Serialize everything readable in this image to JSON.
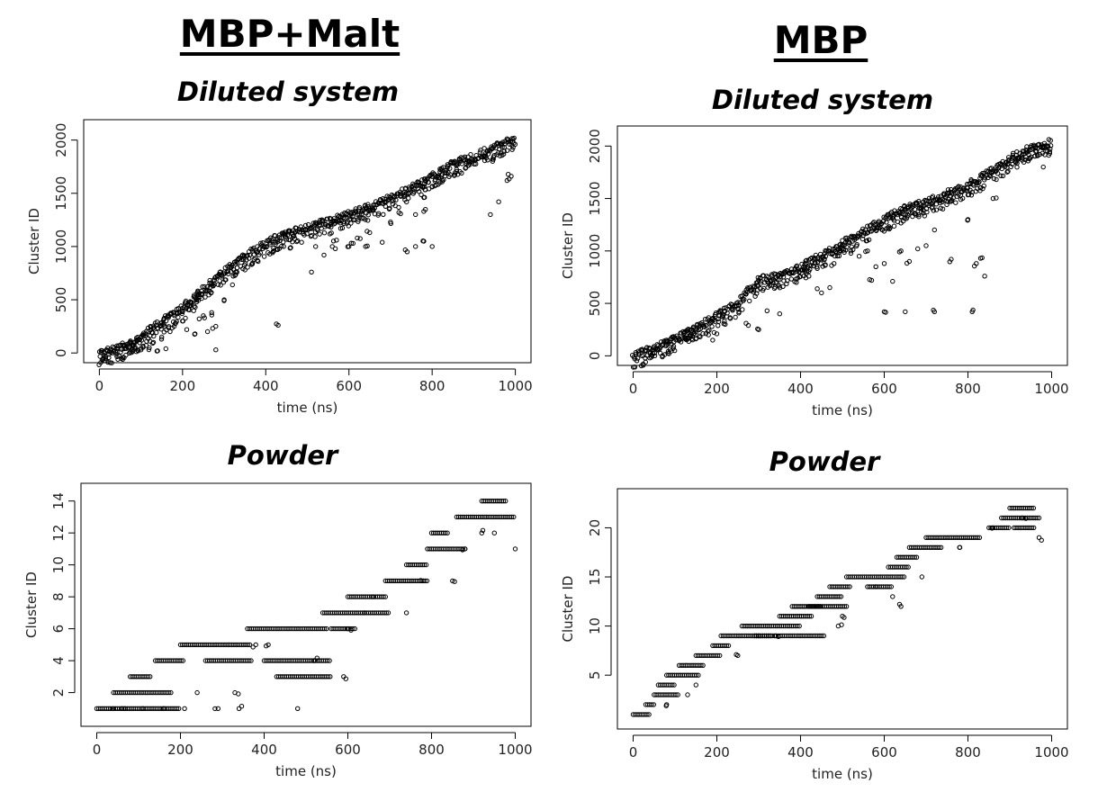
{
  "headers": {
    "left": "MBP+Malt",
    "right": "MBP"
  },
  "chart_data": [
    {
      "id": "mbp-malt-diluted",
      "type": "scatter",
      "title": "Diluted system",
      "xlabel": "time (ns)",
      "ylabel": "Cluster ID",
      "xlim": [
        0,
        1000
      ],
      "ylim": [
        0,
        2100
      ],
      "x_ticks": [
        0,
        200,
        400,
        600,
        800,
        1000
      ],
      "y_ticks": [
        0,
        500,
        1000,
        1500,
        2000
      ],
      "series": [
        {
          "kind": "trend",
          "points": [
            [
              0,
              0
            ],
            [
              50,
              40
            ],
            [
              100,
              150
            ],
            [
              150,
              290
            ],
            [
              200,
              430
            ],
            [
              250,
              590
            ],
            [
              300,
              760
            ],
            [
              350,
              900
            ],
            [
              400,
              1030
            ],
            [
              450,
              1110
            ],
            [
              500,
              1170
            ],
            [
              550,
              1230
            ],
            [
              600,
              1300
            ],
            [
              650,
              1370
            ],
            [
              700,
              1450
            ],
            [
              750,
              1550
            ],
            [
              800,
              1650
            ],
            [
              850,
              1770
            ],
            [
              900,
              1840
            ],
            [
              950,
              1930
            ],
            [
              1000,
              2010
            ]
          ]
        },
        {
          "kind": "outliers",
          "points": [
            [
              60,
              40
            ],
            [
              80,
              60
            ],
            [
              100,
              30
            ],
            [
              120,
              50
            ],
            [
              140,
              20
            ],
            [
              160,
              40
            ],
            [
              130,
              100
            ],
            [
              90,
              110
            ],
            [
              150,
              150
            ],
            [
              170,
              200
            ],
            [
              180,
              250
            ],
            [
              200,
              300
            ],
            [
              210,
              220
            ],
            [
              230,
              180
            ],
            [
              240,
              320
            ],
            [
              250,
              350
            ],
            [
              260,
              200
            ],
            [
              270,
              380
            ],
            [
              280,
              30
            ],
            [
              280,
              250
            ],
            [
              300,
              500
            ],
            [
              320,
              640
            ],
            [
              330,
              760
            ],
            [
              350,
              780
            ],
            [
              380,
              870
            ],
            [
              410,
              930
            ],
            [
              420,
              960
            ],
            [
              430,
              260
            ],
            [
              460,
              990
            ],
            [
              510,
              760
            ],
            [
              520,
              1000
            ],
            [
              540,
              920
            ],
            [
              560,
              1000
            ],
            [
              570,
              1060
            ],
            [
              580,
              1170
            ],
            [
              600,
              1000
            ],
            [
              610,
              1030
            ],
            [
              620,
              1080
            ],
            [
              640,
              1000
            ],
            [
              650,
              1130
            ],
            [
              680,
              1040
            ],
            [
              700,
              1230
            ],
            [
              720,
              1320
            ],
            [
              740,
              950
            ],
            [
              760,
              1000
            ],
            [
              780,
              1050
            ],
            [
              800,
              1000
            ],
            [
              760,
              1300
            ],
            [
              780,
              1330
            ],
            [
              780,
              1460
            ],
            [
              800,
              1560
            ],
            [
              940,
              1300
            ],
            [
              960,
              1420
            ],
            [
              980,
              1620
            ],
            [
              990,
              1660
            ]
          ]
        }
      ]
    },
    {
      "id": "mbp-diluted",
      "type": "scatter",
      "title": "Diluted system",
      "xlabel": "time (ns)",
      "ylabel": "Cluster ID",
      "xlim": [
        0,
        1000
      ],
      "ylim": [
        0,
        2100
      ],
      "x_ticks": [
        0,
        200,
        400,
        600,
        800,
        1000
      ],
      "y_ticks": [
        0,
        500,
        1000,
        1500,
        2000
      ],
      "series": [
        {
          "kind": "trend",
          "points": [
            [
              0,
              0
            ],
            [
              50,
              60
            ],
            [
              100,
              160
            ],
            [
              150,
              260
            ],
            [
              200,
              380
            ],
            [
              250,
              500
            ],
            [
              300,
              720
            ],
            [
              350,
              760
            ],
            [
              400,
              840
            ],
            [
              450,
              950
            ],
            [
              500,
              1070
            ],
            [
              550,
              1180
            ],
            [
              600,
              1300
            ],
            [
              650,
              1400
            ],
            [
              700,
              1460
            ],
            [
              750,
              1540
            ],
            [
              800,
              1620
            ],
            [
              850,
              1740
            ],
            [
              900,
              1880
            ],
            [
              950,
              1970
            ],
            [
              1000,
              2040
            ]
          ]
        },
        {
          "kind": "outliers",
          "points": [
            [
              50,
              90
            ],
            [
              80,
              150
            ],
            [
              100,
              170
            ],
            [
              130,
              160
            ],
            [
              160,
              180
            ],
            [
              180,
              200
            ],
            [
              190,
              150
            ],
            [
              200,
              210
            ],
            [
              220,
              300
            ],
            [
              250,
              450
            ],
            [
              270,
              310
            ],
            [
              300,
              250
            ],
            [
              320,
              430
            ],
            [
              350,
              400
            ],
            [
              380,
              790
            ],
            [
              390,
              700
            ],
            [
              410,
              870
            ],
            [
              420,
              760
            ],
            [
              440,
              640
            ],
            [
              450,
              600
            ],
            [
              470,
              650
            ],
            [
              480,
              880
            ],
            [
              520,
              1000
            ],
            [
              540,
              950
            ],
            [
              560,
              1000
            ],
            [
              570,
              720
            ],
            [
              580,
              850
            ],
            [
              600,
              420
            ],
            [
              600,
              880
            ],
            [
              620,
              710
            ],
            [
              640,
              1000
            ],
            [
              650,
              420
            ],
            [
              660,
              900
            ],
            [
              680,
              1020
            ],
            [
              700,
              1050
            ],
            [
              720,
              420
            ],
            [
              720,
              1200
            ],
            [
              740,
              1400
            ],
            [
              760,
              920
            ],
            [
              800,
              1300
            ],
            [
              810,
              420
            ],
            [
              820,
              880
            ],
            [
              830,
              930
            ],
            [
              840,
              760
            ],
            [
              860,
              1500
            ],
            [
              980,
              1800
            ],
            [
              990,
              1950
            ]
          ]
        }
      ]
    },
    {
      "id": "mbp-malt-powder",
      "type": "scatter",
      "title": "Powder",
      "xlabel": "time (ns)",
      "ylabel": "Cluster ID",
      "xlim": [
        0,
        1000
      ],
      "ylim": [
        0.5,
        14.5
      ],
      "x_ticks": [
        0,
        200,
        400,
        600,
        800,
        1000
      ],
      "y_ticks": [
        2,
        4,
        6,
        8,
        10,
        12,
        14
      ],
      "series": [
        {
          "kind": "segments",
          "points": [
            [
              0,
              40,
              1
            ],
            [
              40,
              200,
              1
            ],
            [
              40,
              180,
              2
            ],
            [
              80,
              130,
              3
            ],
            [
              140,
              210,
              4
            ],
            [
              200,
              370,
              5
            ],
            [
              260,
              370,
              4
            ],
            [
              360,
              550,
              6
            ],
            [
              400,
              560,
              4
            ],
            [
              430,
              560,
              3
            ],
            [
              540,
              640,
              7
            ],
            [
              560,
              620,
              6
            ],
            [
              600,
              690,
              8
            ],
            [
              640,
              700,
              7
            ],
            [
              690,
              790,
              9
            ],
            [
              740,
              790,
              10
            ],
            [
              790,
              880,
              11
            ],
            [
              800,
              840,
              12
            ],
            [
              860,
              930,
              13
            ],
            [
              920,
              980,
              14
            ],
            [
              930,
              1000,
              13
            ]
          ]
        },
        {
          "kind": "outliers",
          "points": [
            [
              60,
              1
            ],
            [
              110,
              1
            ],
            [
              160,
              1
            ],
            [
              210,
              1
            ],
            [
              240,
              2
            ],
            [
              290,
              1
            ],
            [
              330,
              2
            ],
            [
              340,
              1
            ],
            [
              380,
              5
            ],
            [
              410,
              5
            ],
            [
              480,
              1
            ],
            [
              520,
              4
            ],
            [
              590,
              3
            ],
            [
              600,
              6
            ],
            [
              660,
              8
            ],
            [
              740,
              7
            ],
            [
              780,
              9
            ],
            [
              850,
              9
            ],
            [
              880,
              11
            ],
            [
              920,
              12
            ],
            [
              950,
              12
            ],
            [
              1000,
              11
            ]
          ]
        }
      ]
    },
    {
      "id": "mbp-powder",
      "type": "scatter",
      "title": "Powder",
      "xlabel": "time (ns)",
      "ylabel": "Cluster ID",
      "xlim": [
        0,
        1000
      ],
      "ylim": [
        0.5,
        23
      ],
      "x_ticks": [
        0,
        200,
        400,
        600,
        800,
        1000
      ],
      "y_ticks": [
        5,
        10,
        15,
        20
      ],
      "series": [
        {
          "kind": "segments",
          "points": [
            [
              0,
              40,
              1
            ],
            [
              30,
              50,
              2
            ],
            [
              50,
              110,
              3
            ],
            [
              60,
              100,
              4
            ],
            [
              80,
              160,
              5
            ],
            [
              110,
              170,
              6
            ],
            [
              150,
              210,
              7
            ],
            [
              190,
              230,
              8
            ],
            [
              210,
              330,
              9
            ],
            [
              260,
              400,
              10
            ],
            [
              290,
              460,
              9
            ],
            [
              350,
              430,
              11
            ],
            [
              380,
              450,
              12
            ],
            [
              420,
              510,
              12
            ],
            [
              440,
              500,
              13
            ],
            [
              470,
              520,
              14
            ],
            [
              510,
              650,
              15
            ],
            [
              560,
              620,
              14
            ],
            [
              610,
              660,
              16
            ],
            [
              630,
              680,
              17
            ],
            [
              660,
              740,
              18
            ],
            [
              700,
              830,
              19
            ],
            [
              850,
              900,
              20
            ],
            [
              880,
              970,
              21
            ],
            [
              900,
              960,
              22
            ],
            [
              910,
              960,
              20
            ]
          ]
        },
        {
          "kind": "outliers",
          "points": [
            [
              80,
              2
            ],
            [
              130,
              3
            ],
            [
              150,
              4
            ],
            [
              250,
              7
            ],
            [
              300,
              9
            ],
            [
              340,
              9
            ],
            [
              490,
              10
            ],
            [
              500,
              11
            ],
            [
              580,
              14
            ],
            [
              620,
              13
            ],
            [
              640,
              12
            ],
            [
              690,
              15
            ],
            [
              780,
              18
            ],
            [
              860,
              20
            ],
            [
              930,
              21
            ],
            [
              970,
              19
            ]
          ]
        }
      ]
    }
  ]
}
